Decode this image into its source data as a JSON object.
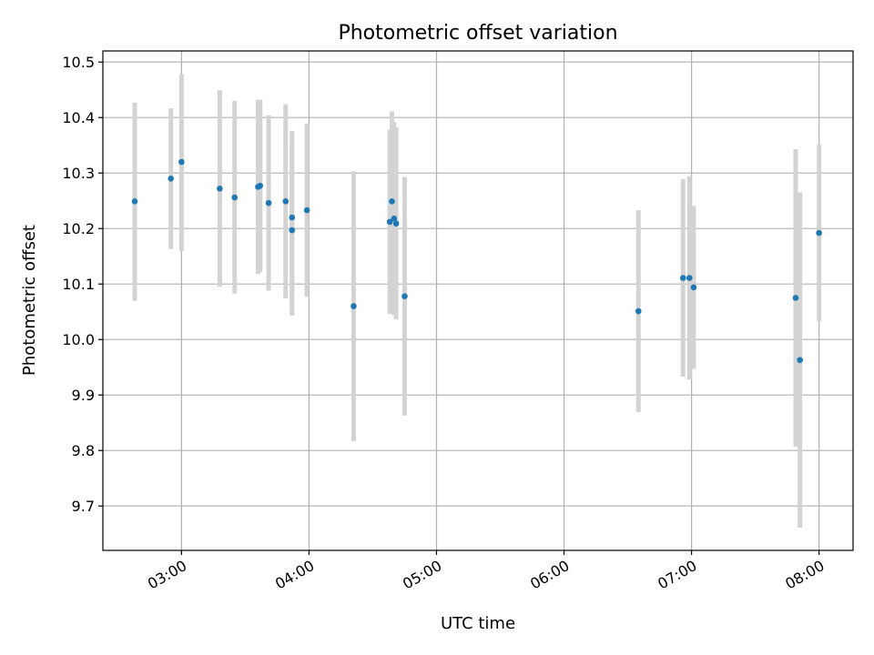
{
  "chart_data": {
    "type": "scatter",
    "title": "Photometric offset variation",
    "xlabel": "UTC time",
    "ylabel": "Photometric offset",
    "xlim": [
      "02:23",
      "08:16"
    ],
    "ylim": [
      9.62,
      10.52
    ],
    "x_ticks": [
      "03:00",
      "04:00",
      "05:00",
      "06:00",
      "07:00",
      "08:00"
    ],
    "y_ticks": [
      9.7,
      9.8,
      9.9,
      10.0,
      10.1,
      10.2,
      10.3,
      10.4,
      10.5
    ],
    "grid": true,
    "marker_color": "#1f77b4",
    "errorbar_color": "#d3d3d3",
    "series": [
      {
        "points": [
          {
            "x": "02:38",
            "y": 10.249,
            "err_low": 10.07,
            "err_high": 10.427
          },
          {
            "x": "02:55",
            "y": 10.29,
            "err_low": 10.163,
            "err_high": 10.417
          },
          {
            "x": "03:00",
            "y": 10.32,
            "err_low": 10.16,
            "err_high": 10.478
          },
          {
            "x": "03:18",
            "y": 10.272,
            "err_low": 10.095,
            "err_high": 10.449
          },
          {
            "x": "03:25",
            "y": 10.256,
            "err_low": 10.083,
            "err_high": 10.43
          },
          {
            "x": "03:36",
            "y": 10.275,
            "err_low": 10.118,
            "err_high": 10.432
          },
          {
            "x": "03:37",
            "y": 10.277,
            "err_low": 10.121,
            "err_high": 10.432
          },
          {
            "x": "03:41",
            "y": 10.246,
            "err_low": 10.088,
            "err_high": 10.404
          },
          {
            "x": "03:49",
            "y": 10.249,
            "err_low": 10.074,
            "err_high": 10.424
          },
          {
            "x": "03:52",
            "y": 10.197,
            "err_low": 10.043,
            "err_high": 10.351
          },
          {
            "x": "03:52",
            "y": 10.22,
            "err_low": 10.064,
            "err_high": 10.376
          },
          {
            "x": "03:59",
            "y": 10.233,
            "err_low": 10.077,
            "err_high": 10.389
          },
          {
            "x": "04:21",
            "y": 10.06,
            "err_low": 9.817,
            "err_high": 10.303
          },
          {
            "x": "04:38",
            "y": 10.212,
            "err_low": 10.046,
            "err_high": 10.378
          },
          {
            "x": "04:39",
            "y": 10.249,
            "err_low": 10.087,
            "err_high": 10.411
          },
          {
            "x": "04:40",
            "y": 10.218,
            "err_low": 10.044,
            "err_high": 10.392
          },
          {
            "x": "04:41",
            "y": 10.209,
            "err_low": 10.036,
            "err_high": 10.382
          },
          {
            "x": "04:45",
            "y": 10.078,
            "err_low": 9.863,
            "err_high": 10.293
          },
          {
            "x": "06:35",
            "y": 10.051,
            "err_low": 9.869,
            "err_high": 10.233
          },
          {
            "x": "06:56",
            "y": 10.111,
            "err_low": 9.933,
            "err_high": 10.289
          },
          {
            "x": "06:59",
            "y": 10.111,
            "err_low": 9.928,
            "err_high": 10.294
          },
          {
            "x": "07:01",
            "y": 10.094,
            "err_low": 9.947,
            "err_high": 10.241
          },
          {
            "x": "07:49",
            "y": 10.075,
            "err_low": 9.807,
            "err_high": 10.343
          },
          {
            "x": "07:51",
            "y": 9.963,
            "err_low": 9.661,
            "err_high": 10.265
          },
          {
            "x": "08:00",
            "y": 10.192,
            "err_low": 10.033,
            "err_high": 10.351
          }
        ]
      }
    ]
  }
}
